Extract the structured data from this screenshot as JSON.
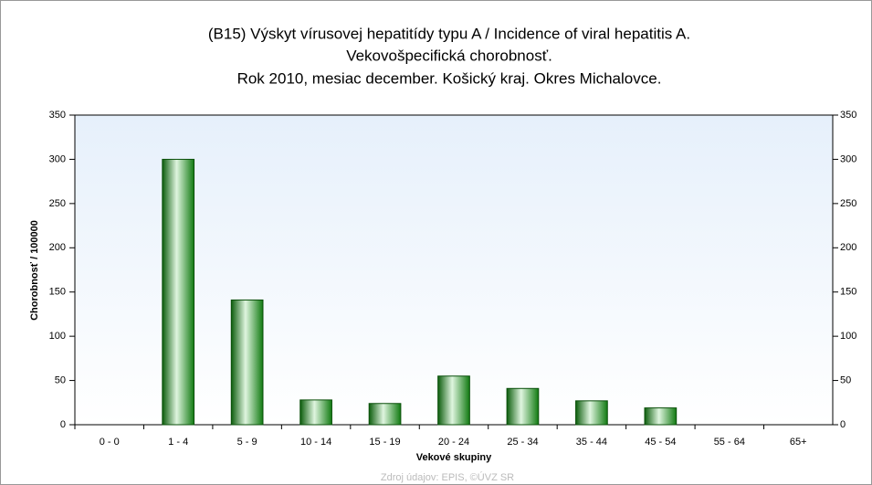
{
  "chart_data": {
    "type": "bar",
    "title": [
      "(B15) Výskyt vírusovej hepatitídy typu A / Incidence of viral hepatitis A.",
      "Vekovošpecifická chorobnosť.",
      "Rok 2010, mesiac december. Košický kraj. Okres Michalovce."
    ],
    "x_label": "Vekové skupiny",
    "y_label": "Chorobnosť / 100000",
    "source": "Zdroj údajov: EPIS, ©ÚVZ SR",
    "categories": [
      "0 - 0",
      "1 - 4",
      "5 - 9",
      "10 - 14",
      "15 - 19",
      "20 - 24",
      "25 - 34",
      "35 - 44",
      "45 - 54",
      "55 - 64",
      "65+"
    ],
    "values": [
      0,
      300,
      141,
      28,
      24,
      55,
      41,
      27,
      19,
      0,
      0
    ],
    "color": "#1f9a1f",
    "ylim": [
      0,
      350
    ],
    "yticks": [
      0,
      50,
      100,
      150,
      200,
      250,
      300,
      350
    ],
    "y2lim": [
      0,
      350
    ],
    "y2ticks": [
      0,
      50,
      100,
      150,
      200,
      250,
      300,
      350
    ]
  }
}
